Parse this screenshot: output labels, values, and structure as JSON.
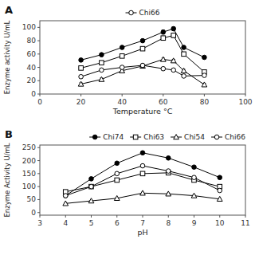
{
  "chart_data": [
    {
      "type": "line",
      "title": "A",
      "xlabel": "Temperature °C",
      "ylabel": "Enzyme activity U/mL",
      "xlim": [
        0,
        100
      ],
      "ylim": [
        0,
        110
      ],
      "xticks": [
        0,
        20,
        40,
        60,
        80,
        100
      ],
      "yticks": [
        0,
        20,
        40,
        60,
        80,
        100
      ],
      "legend": "top",
      "series": [
        {
          "color": "#000000",
          "marker": "circle",
          "x": [
            20,
            30,
            40,
            50,
            60,
            65,
            70,
            80
          ],
          "values": [
            51,
            59,
            70,
            80,
            93,
            98,
            70,
            55
          ],
          "errors": [
            2,
            2,
            2,
            2,
            3,
            3,
            2,
            2
          ]
        },
        {
          "color": "#000000",
          "marker": "open-square",
          "x": [
            20,
            30,
            40,
            50,
            60,
            65,
            70,
            80
          ],
          "values": [
            39,
            47,
            57,
            68,
            84,
            88,
            60,
            33
          ],
          "errors": [
            2,
            2,
            2,
            2,
            3,
            3,
            2,
            2
          ]
        },
        {
          "color": "#000000",
          "marker": "open-triangle",
          "x": [
            20,
            30,
            40,
            50,
            60,
            65,
            70,
            80
          ],
          "values": [
            15,
            22,
            35,
            42,
            52,
            50,
            35,
            14
          ],
          "errors": [
            2,
            2,
            2,
            2,
            2,
            2,
            2,
            2
          ]
        },
        {
          "name": "Chi66",
          "color": "#000000",
          "marker": "open-circle",
          "x": [
            20,
            30,
            40,
            50,
            60,
            65,
            70,
            80
          ],
          "values": [
            26,
            36,
            40,
            43,
            38,
            36,
            27,
            28
          ],
          "errors": [
            2,
            2,
            2,
            2,
            2,
            2,
            2,
            2
          ]
        }
      ]
    },
    {
      "type": "line",
      "title": "B",
      "xlabel": "pH",
      "ylabel": "Enzyme Activity U/mL",
      "xlim": [
        3,
        11
      ],
      "ylim": [
        -10,
        260
      ],
      "xticks": [
        3,
        4,
        5,
        6,
        7,
        8,
        9,
        10,
        11
      ],
      "yticks": [
        0,
        50,
        100,
        150,
        200,
        250
      ],
      "legend": "top-right",
      "series": [
        {
          "name": "Chi74",
          "color": "#000000",
          "marker": "circle",
          "x": [
            4,
            5,
            6,
            7,
            8,
            9,
            10
          ],
          "values": [
            65,
            130,
            190,
            230,
            210,
            175,
            135
          ],
          "errors": [
            3,
            3,
            4,
            5,
            4,
            4,
            3
          ]
        },
        {
          "name": "Chi63",
          "color": "#000000",
          "marker": "open-square",
          "x": [
            4,
            5,
            6,
            7,
            8,
            9,
            10
          ],
          "values": [
            80,
            100,
            125,
            150,
            153,
            125,
            100
          ],
          "errors": [
            3,
            3,
            3,
            4,
            4,
            3,
            3
          ]
        },
        {
          "name": "Chi54",
          "color": "#000000",
          "marker": "open-triangle",
          "x": [
            4,
            5,
            6,
            7,
            8,
            9,
            10
          ],
          "values": [
            35,
            45,
            55,
            75,
            72,
            65,
            52
          ],
          "errors": [
            2,
            2,
            2,
            3,
            3,
            2,
            2
          ]
        },
        {
          "name": "Chi66",
          "color": "#000000",
          "marker": "open-circle",
          "x": [
            4,
            5,
            6,
            7,
            8,
            9,
            10
          ],
          "values": [
            65,
            100,
            150,
            180,
            160,
            135,
            85
          ],
          "errors": [
            2,
            3,
            4,
            4,
            4,
            3,
            3
          ]
        }
      ]
    }
  ]
}
